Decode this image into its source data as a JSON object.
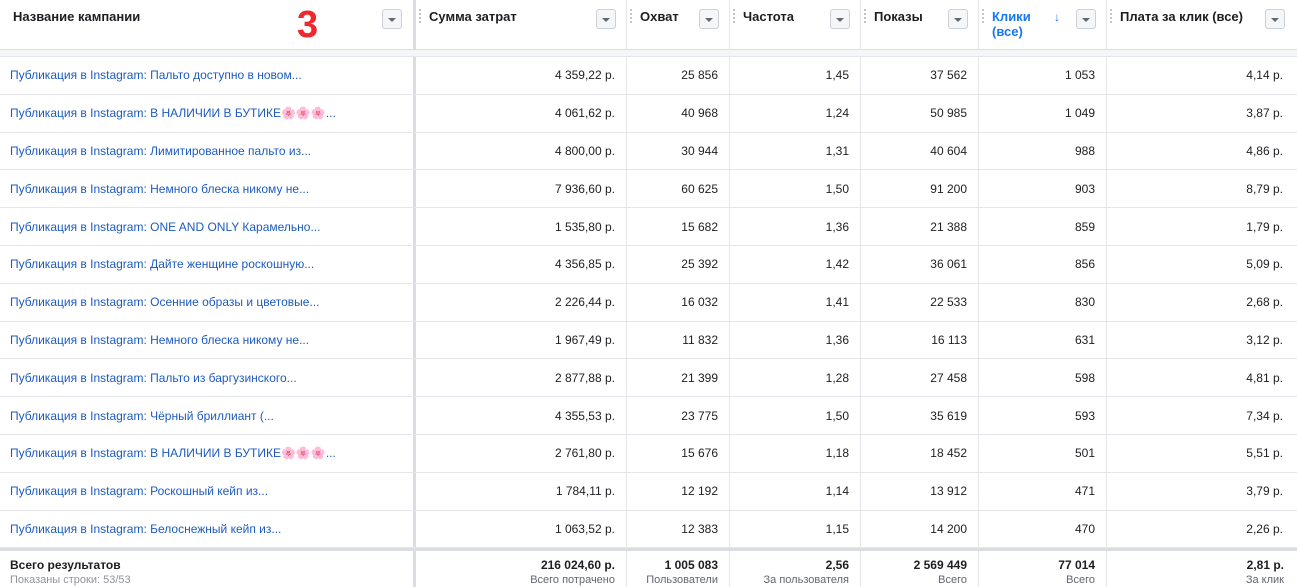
{
  "annotation": "3",
  "columns": [
    {
      "title": "Название кампании"
    },
    {
      "title": "Сумма затрат"
    },
    {
      "title": "Охват"
    },
    {
      "title": "Частота"
    },
    {
      "title": "Показы"
    },
    {
      "title": "Клики (все)",
      "sort_icon": "arrow-down",
      "accent": "#1877f2"
    },
    {
      "title": "Плата за клик (все)"
    }
  ],
  "rows": [
    {
      "name": "Публикация в Instagram: Пальто доступно в новом...",
      "spend": "4 359,22 р.",
      "reach": "25 856",
      "freq": "1,45",
      "impr": "37 562",
      "clicks": "1 053",
      "cpc": "4,14 р."
    },
    {
      "name": "Публикация в Instagram: В НАЛИЧИИ В БУТИКЕ🌸🌸🌸...",
      "spend": "4 061,62 р.",
      "reach": "40 968",
      "freq": "1,24",
      "impr": "50 985",
      "clicks": "1 049",
      "cpc": "3,87 р."
    },
    {
      "name": "Публикация в Instagram: Лимитированное пальто из...",
      "spend": "4 800,00 р.",
      "reach": "30 944",
      "freq": "1,31",
      "impr": "40 604",
      "clicks": "988",
      "cpc": "4,86 р."
    },
    {
      "name": "Публикация в Instagram: Немного блеска никому не...",
      "spend": "7 936,60 р.",
      "reach": "60 625",
      "freq": "1,50",
      "impr": "91 200",
      "clicks": "903",
      "cpc": "8,79 р."
    },
    {
      "name": "Публикация в Instagram: ONE AND ONLY Карамельно...",
      "spend": "1 535,80 р.",
      "reach": "15 682",
      "freq": "1,36",
      "impr": "21 388",
      "clicks": "859",
      "cpc": "1,79 р."
    },
    {
      "name": "Публикация в Instagram: Дайте женщине роскошную...",
      "spend": "4 356,85 р.",
      "reach": "25 392",
      "freq": "1,42",
      "impr": "36 061",
      "clicks": "856",
      "cpc": "5,09 р."
    },
    {
      "name": "Публикация в Instagram: Осенние образы и цветовые...",
      "spend": "2 226,44 р.",
      "reach": "16 032",
      "freq": "1,41",
      "impr": "22 533",
      "clicks": "830",
      "cpc": "2,68 р."
    },
    {
      "name": "Публикация в Instagram: Немного блеска никому не...",
      "spend": "1 967,49 р.",
      "reach": "11 832",
      "freq": "1,36",
      "impr": "16 113",
      "clicks": "631",
      "cpc": "3,12 р."
    },
    {
      "name": "Публикация в Instagram: Пальто из баргузинского...",
      "spend": "2 877,88 р.",
      "reach": "21 399",
      "freq": "1,28",
      "impr": "27 458",
      "clicks": "598",
      "cpc": "4,81 р."
    },
    {
      "name": "Публикация в Instagram: Чёрный бриллиант (...",
      "spend": "4 355,53 р.",
      "reach": "23 775",
      "freq": "1,50",
      "impr": "35 619",
      "clicks": "593",
      "cpc": "7,34 р."
    },
    {
      "name": "Публикация в Instagram: В НАЛИЧИИ В БУТИКЕ🌸🌸🌸...",
      "spend": "2 761,80 р.",
      "reach": "15 676",
      "freq": "1,18",
      "impr": "18 452",
      "clicks": "501",
      "cpc": "5,51 р."
    },
    {
      "name": "Публикация в Instagram: Роскошный кейп из...",
      "spend": "1 784,11 р.",
      "reach": "12 192",
      "freq": "1,14",
      "impr": "13 912",
      "clicks": "471",
      "cpc": "3,79 р."
    },
    {
      "name": "Публикация в Instagram: Белоснежный кейп из...",
      "spend": "1 063,52 р.",
      "reach": "12 383",
      "freq": "1,15",
      "impr": "14 200",
      "clicks": "470",
      "cpc": "2,26 р."
    }
  ],
  "totals": {
    "label": "Всего результатов",
    "rows_shown": "Показаны строки: 53/53",
    "spend": {
      "value": "216 024,60 р.",
      "sub": "Всего потрачено"
    },
    "reach": {
      "value": "1 005 083",
      "sub": "Пользователи"
    },
    "freq": {
      "value": "2,56",
      "sub": "За пользователя"
    },
    "impr": {
      "value": "2 569 449",
      "sub": "Всего"
    },
    "clicks": {
      "value": "77 014",
      "sub": "Всего"
    },
    "cpc": {
      "value": "2,81 р.",
      "sub": "За клик"
    }
  }
}
